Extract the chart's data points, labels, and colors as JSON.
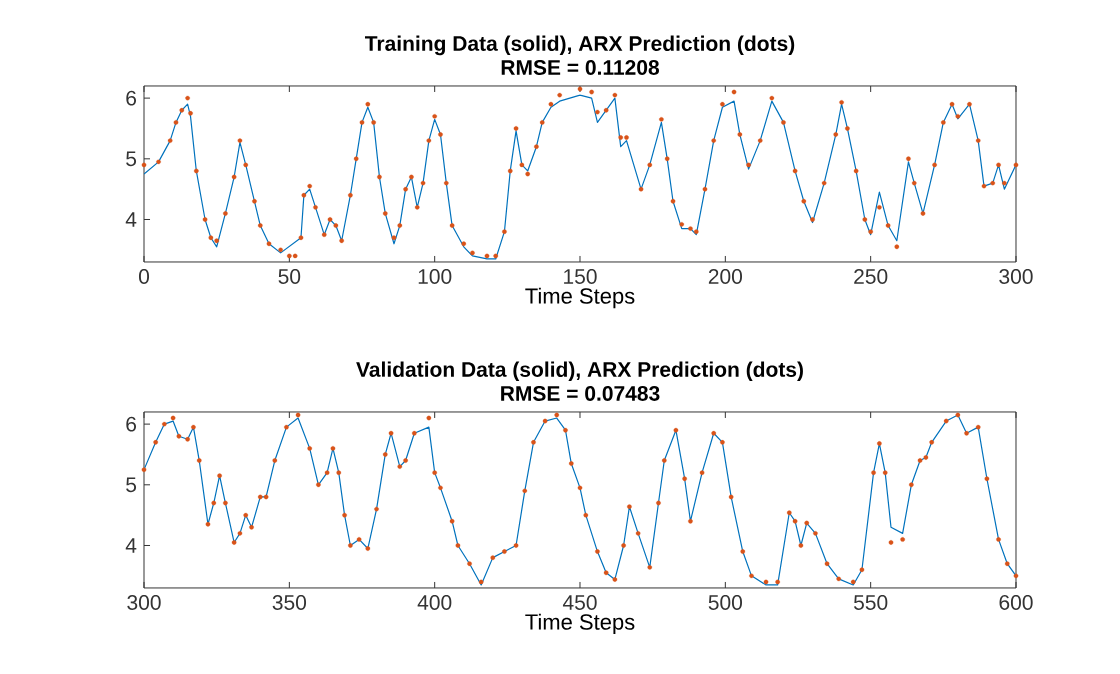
{
  "chart_data": [
    {
      "type": "line",
      "title": "Training Data (solid), ARX Prediction (dots)",
      "subtitle": "RMSE = 0.11208",
      "xlabel": "Time Steps",
      "x": [
        0,
        5,
        9,
        11,
        13,
        15,
        16,
        18,
        21,
        23,
        25,
        28,
        31,
        33,
        35,
        38,
        40,
        43,
        47,
        50,
        52,
        54,
        55,
        57,
        59,
        62,
        64,
        66,
        68,
        71,
        73,
        75,
        77,
        79,
        81,
        83,
        86,
        88,
        90,
        92,
        94,
        96,
        98,
        100,
        102,
        104,
        106,
        110,
        113,
        118,
        121,
        124,
        126,
        128,
        130,
        132,
        135,
        137,
        140,
        143,
        150,
        154,
        156,
        159,
        162,
        164,
        166,
        171,
        174,
        178,
        180,
        182,
        185,
        188,
        190,
        193,
        196,
        199,
        203,
        205,
        208,
        212,
        216,
        220,
        224,
        227,
        230,
        234,
        238,
        240,
        242,
        245,
        248,
        250,
        253,
        256,
        259,
        263,
        265,
        268,
        272,
        275,
        278,
        280,
        284,
        287,
        289,
        292,
        294,
        296,
        300
      ],
      "series": [
        {
          "color": "#0072bd",
          "values": [
            4.75,
            4.95,
            5.3,
            5.6,
            5.8,
            5.9,
            5.7,
            4.8,
            4.0,
            3.7,
            3.55,
            4.1,
            4.7,
            5.27,
            4.9,
            4.3,
            3.9,
            3.6,
            3.45,
            null,
            null,
            3.7,
            4.4,
            4.5,
            4.2,
            3.75,
            4.0,
            3.9,
            3.65,
            4.4,
            5.0,
            5.6,
            5.85,
            5.6,
            4.7,
            4.1,
            3.6,
            3.9,
            4.5,
            4.7,
            4.2,
            4.6,
            5.3,
            5.65,
            5.4,
            4.6,
            3.9,
            3.55,
            3.4,
            3.35,
            3.35,
            3.8,
            4.8,
            5.46,
            4.9,
            4.8,
            5.2,
            5.6,
            5.85,
            5.95,
            6.05,
            6.0,
            5.6,
            5.8,
            6.0,
            5.2,
            5.3,
            4.5,
            4.9,
            5.6,
            5.0,
            4.3,
            3.85,
            3.85,
            3.75,
            4.5,
            5.3,
            5.85,
            5.95,
            5.4,
            4.83,
            5.3,
            5.95,
            5.6,
            4.8,
            4.3,
            3.95,
            4.6,
            5.4,
            5.9,
            5.5,
            4.8,
            4.0,
            3.75,
            4.45,
            3.9,
            3.65,
            4.95,
            4.6,
            4.1,
            4.9,
            5.6,
            5.9,
            5.66,
            5.9,
            5.3,
            4.55,
            4.6,
            4.9,
            4.5,
            4.9
          ]
        },
        {
          "type": "scatter",
          "marker": "circle",
          "color": "#d95319",
          "values": [
            4.9,
            4.95,
            5.3,
            5.6,
            5.8,
            6.0,
            5.75,
            4.8,
            4.0,
            3.7,
            3.65,
            4.1,
            4.7,
            5.3,
            4.9,
            4.3,
            3.9,
            3.6,
            3.5,
            3.4,
            3.4,
            3.7,
            4.4,
            4.55,
            4.2,
            3.75,
            4.0,
            3.9,
            3.65,
            4.4,
            5.0,
            5.6,
            5.9,
            5.6,
            4.7,
            4.1,
            3.7,
            3.9,
            4.5,
            4.7,
            4.2,
            4.6,
            5.3,
            5.7,
            5.4,
            4.6,
            3.9,
            3.6,
            3.45,
            3.4,
            3.4,
            3.8,
            4.8,
            5.5,
            4.9,
            4.75,
            5.2,
            5.6,
            5.9,
            6.05,
            6.15,
            6.1,
            5.77,
            5.8,
            6.05,
            5.35,
            5.35,
            4.5,
            4.9,
            5.65,
            5.0,
            4.3,
            3.92,
            3.85,
            3.8,
            4.5,
            5.3,
            5.9,
            6.1,
            5.4,
            4.9,
            5.3,
            6.0,
            5.6,
            4.8,
            4.3,
            4.0,
            4.6,
            5.4,
            5.93,
            5.5,
            4.8,
            4.0,
            3.8,
            4.2,
            3.9,
            3.55,
            5.0,
            4.6,
            4.1,
            4.9,
            5.6,
            5.9,
            5.7,
            5.9,
            5.3,
            4.55,
            4.6,
            4.9,
            4.6,
            4.9
          ]
        }
      ],
      "xlim": [
        0,
        300
      ],
      "ylim": [
        3.3,
        6.2
      ],
      "xticks": [
        0,
        50,
        100,
        150,
        200,
        250,
        300
      ],
      "yticks": [
        4,
        5,
        6
      ],
      "grid": false
    },
    {
      "type": "line",
      "title": "Validation Data (solid), ARX Prediction (dots)",
      "subtitle": "RMSE = 0.07483",
      "xlabel": "Time Steps",
      "x": [
        300,
        304,
        307,
        310,
        312,
        315,
        317,
        319,
        322,
        324,
        326,
        328,
        331,
        333,
        335,
        337,
        340,
        342,
        345,
        349,
        353,
        357,
        360,
        363,
        365,
        367,
        369,
        371,
        374,
        377,
        380,
        383,
        385,
        388,
        390,
        393,
        398,
        400,
        402,
        406,
        408,
        412,
        416,
        420,
        424,
        428,
        431,
        434,
        438,
        442,
        445,
        447,
        450,
        452,
        456,
        459,
        462,
        465,
        467,
        470,
        474,
        477,
        479,
        483,
        486,
        488,
        492,
        496,
        499,
        502,
        506,
        509,
        514,
        518,
        522,
        524,
        526,
        528,
        531,
        535,
        539,
        544,
        547,
        551,
        553,
        555,
        557,
        561,
        564,
        567,
        569,
        571,
        576,
        580,
        583,
        587,
        590,
        594,
        597,
        600
      ],
      "series": [
        {
          "color": "#0072bd",
          "values": [
            5.25,
            5.7,
            6.0,
            6.05,
            5.8,
            5.75,
            5.95,
            5.4,
            4.35,
            4.7,
            5.15,
            4.7,
            4.05,
            4.2,
            4.5,
            4.3,
            4.8,
            4.8,
            5.4,
            5.95,
            6.1,
            5.6,
            5.0,
            5.2,
            5.6,
            5.2,
            4.5,
            4.0,
            4.1,
            3.95,
            4.6,
            5.5,
            5.85,
            5.3,
            5.4,
            5.85,
            5.95,
            5.2,
            4.95,
            4.4,
            4.0,
            3.7,
            3.35,
            3.8,
            3.9,
            4.0,
            4.9,
            5.7,
            6.05,
            6.1,
            5.9,
            5.35,
            4.95,
            4.5,
            3.9,
            3.55,
            3.44,
            4.0,
            4.64,
            4.2,
            3.64,
            4.7,
            5.4,
            5.9,
            5.1,
            4.4,
            5.2,
            5.85,
            5.7,
            4.8,
            3.9,
            3.5,
            3.35,
            3.35,
            4.54,
            4.4,
            4.0,
            4.37,
            4.2,
            3.7,
            3.45,
            3.35,
            3.6,
            5.2,
            5.68,
            5.2,
            4.3,
            4.2,
            5.0,
            5.4,
            5.45,
            5.7,
            6.05,
            6.15,
            5.85,
            5.95,
            5.1,
            4.1,
            3.7,
            3.5
          ]
        },
        {
          "type": "scatter",
          "marker": "circle",
          "color": "#d95319",
          "values": [
            5.25,
            5.7,
            6.0,
            6.1,
            5.8,
            5.75,
            5.95,
            5.4,
            4.35,
            4.7,
            5.15,
            4.7,
            4.05,
            4.2,
            4.5,
            4.3,
            4.8,
            4.8,
            5.4,
            5.95,
            6.15,
            5.6,
            5.0,
            5.2,
            5.6,
            5.2,
            4.5,
            4.0,
            4.1,
            3.95,
            4.6,
            5.5,
            5.85,
            5.3,
            5.4,
            5.85,
            6.1,
            5.2,
            4.95,
            4.4,
            4.0,
            3.7,
            3.4,
            3.8,
            3.9,
            4.0,
            4.9,
            5.7,
            6.05,
            6.15,
            5.9,
            5.35,
            4.95,
            4.5,
            3.9,
            3.55,
            3.44,
            4.0,
            4.64,
            4.2,
            3.64,
            4.7,
            5.4,
            5.9,
            5.1,
            4.4,
            5.2,
            5.85,
            5.7,
            4.8,
            3.9,
            3.5,
            3.4,
            3.4,
            4.54,
            4.4,
            4.0,
            4.37,
            4.2,
            3.7,
            3.45,
            3.4,
            3.6,
            5.2,
            5.68,
            5.2,
            4.05,
            4.1,
            5.0,
            5.4,
            5.45,
            5.7,
            6.05,
            6.15,
            5.85,
            5.95,
            5.1,
            4.1,
            3.7,
            3.5
          ]
        }
      ],
      "xlim": [
        300,
        600
      ],
      "ylim": [
        3.3,
        6.2
      ],
      "xticks": [
        300,
        350,
        400,
        450,
        500,
        550,
        600
      ],
      "yticks": [
        4,
        5,
        6
      ],
      "grid": false
    }
  ]
}
